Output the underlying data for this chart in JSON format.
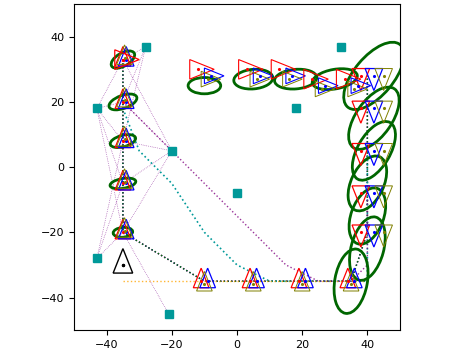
{
  "xlim": [
    -50,
    50
  ],
  "ylim": [
    -50,
    50
  ],
  "xticks": [
    -40,
    -20,
    0,
    20,
    40
  ],
  "yticks": [
    -40,
    -20,
    0,
    20,
    40
  ],
  "landmarks": [
    [
      -43,
      -28
    ],
    [
      -43,
      18
    ],
    [
      -28,
      37
    ],
    [
      -21,
      -45
    ],
    [
      -20,
      5
    ],
    [
      0,
      -8
    ],
    [
      18,
      18
    ],
    [
      32,
      37
    ]
  ],
  "ellipse_color": "#006600",
  "ellipse_lw": 2.0,
  "tri_lw": 0.9,
  "dot_lw": 1.0
}
